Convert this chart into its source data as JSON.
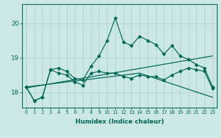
{
  "xlabel": "Humidex (Indice chaleur)",
  "bg_color": "#cce8e4",
  "line_color": "#006655",
  "grid_color": "#aad4cc",
  "xlim": [
    -0.5,
    23.5
  ],
  "ylim": [
    17.55,
    20.55
  ],
  "yticks": [
    18,
    19,
    20
  ],
  "xticks": [
    0,
    1,
    2,
    3,
    4,
    5,
    6,
    7,
    8,
    9,
    10,
    11,
    12,
    13,
    14,
    15,
    16,
    17,
    18,
    19,
    20,
    21,
    22,
    23
  ],
  "line1_x": [
    0,
    1,
    2,
    3,
    4,
    5,
    6,
    7,
    8,
    9,
    10,
    11,
    12,
    13,
    14,
    15,
    16,
    17,
    18,
    19,
    20,
    21,
    22,
    23
  ],
  "line1_y": [
    18.15,
    17.75,
    17.85,
    18.65,
    18.7,
    18.6,
    18.4,
    18.35,
    18.75,
    19.05,
    19.5,
    20.15,
    19.45,
    19.35,
    19.62,
    19.5,
    19.38,
    19.1,
    19.35,
    19.05,
    18.95,
    18.8,
    18.7,
    18.15
  ],
  "line2_x": [
    0,
    1,
    2,
    3,
    4,
    5,
    6,
    7,
    8,
    9,
    10,
    11,
    12,
    13,
    14,
    15,
    16,
    17,
    18,
    19,
    20,
    21,
    22,
    23
  ],
  "line2_y": [
    18.15,
    17.75,
    17.85,
    18.65,
    18.55,
    18.5,
    18.3,
    18.2,
    18.55,
    18.6,
    18.55,
    18.55,
    18.45,
    18.4,
    18.5,
    18.45,
    18.45,
    18.35,
    18.5,
    18.6,
    18.7,
    18.65,
    18.6,
    18.1
  ],
  "trend1_x": [
    0,
    23
  ],
  "trend1_y": [
    18.12,
    19.05
  ],
  "trend2_x": [
    0,
    14,
    23
  ],
  "trend2_y": [
    18.15,
    18.55,
    17.85
  ],
  "marker": "D",
  "marker_size": 2.5,
  "lw": 0.9
}
